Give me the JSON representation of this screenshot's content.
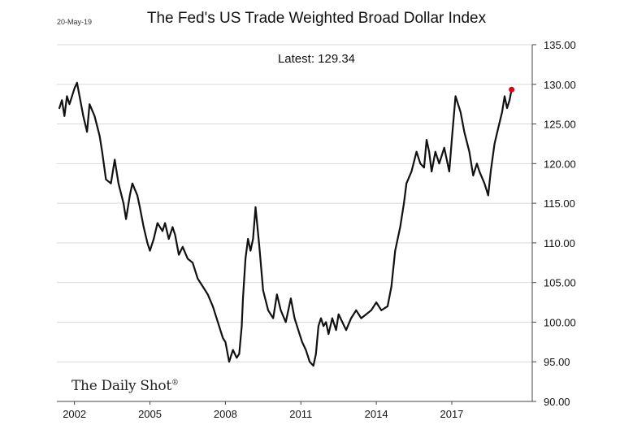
{
  "date_stamp": "20-May-19",
  "brand": "The Daily Shot",
  "brand_mark": "®",
  "colors": {
    "line": "#111111",
    "latest_point": "#e0001b",
    "grid": "#d9d9d9"
  },
  "chart_data": {
    "type": "line",
    "title": "The Fed's US Trade Weighted Broad Dollar Index",
    "annotation": "Latest:  129.34",
    "xlabel": "",
    "ylabel": "",
    "ylim": [
      90,
      135
    ],
    "xlim": [
      2001.3,
      2020.2
    ],
    "x_ticks": [
      2002,
      2005,
      2008,
      2011,
      2014,
      2017
    ],
    "x_tick_labels": [
      "2002",
      "2005",
      "2008",
      "2011",
      "2014",
      "2017"
    ],
    "y_ticks": [
      90,
      95,
      100,
      105,
      110,
      115,
      120,
      125,
      130,
      135
    ],
    "y_tick_labels": [
      "90.00",
      "95.00",
      "100.00",
      "105.00",
      "110.00",
      "115.00",
      "120.00",
      "125.00",
      "130.00",
      "135.00"
    ],
    "grid": "horizontal",
    "latest": {
      "x": 2019.38,
      "y": 129.34
    },
    "series": [
      {
        "x": [
          2001.4,
          2001.5,
          2001.6,
          2001.7,
          2001.8,
          2002.0,
          2002.1,
          2002.2,
          2002.35,
          2002.5,
          2002.6,
          2002.8,
          2003.0,
          2003.1,
          2003.25,
          2003.45,
          2003.6,
          2003.75,
          2003.95,
          2004.05,
          2004.2,
          2004.3,
          2004.5,
          2004.6,
          2004.75,
          2004.9,
          2005.0,
          2005.15,
          2005.3,
          2005.5,
          2005.6,
          2005.75,
          2005.9,
          2006.0,
          2006.15,
          2006.3,
          2006.5,
          2006.7,
          2006.9,
          2007.1,
          2007.3,
          2007.5,
          2007.7,
          2007.9,
          2008.0,
          2008.15,
          2008.3,
          2008.45,
          2008.55,
          2008.65,
          2008.7,
          2008.8,
          2008.9,
          2009.0,
          2009.1,
          2009.2,
          2009.35,
          2009.5,
          2009.7,
          2009.9,
          2010.05,
          2010.2,
          2010.4,
          2010.6,
          2010.75,
          2010.9,
          2011.05,
          2011.2,
          2011.35,
          2011.5,
          2011.6,
          2011.7,
          2011.8,
          2011.9,
          2012.0,
          2012.1,
          2012.25,
          2012.4,
          2012.5,
          2012.65,
          2012.8,
          2013.0,
          2013.2,
          2013.4,
          2013.6,
          2013.8,
          2014.0,
          2014.2,
          2014.45,
          2014.6,
          2014.75,
          2014.95,
          2015.1,
          2015.2,
          2015.4,
          2015.6,
          2015.75,
          2015.9,
          2016.0,
          2016.1,
          2016.2,
          2016.35,
          2016.5,
          2016.7,
          2016.9,
          2017.0,
          2017.15,
          2017.35,
          2017.5,
          2017.7,
          2017.85,
          2018.0,
          2018.1,
          2018.3,
          2018.45,
          2018.55,
          2018.7,
          2018.85,
          2019.0,
          2019.1,
          2019.2,
          2019.3,
          2019.38
        ],
        "y": [
          127.0,
          128.0,
          126.0,
          128.5,
          127.5,
          129.5,
          130.2,
          128.5,
          126.0,
          124.0,
          127.5,
          126.0,
          123.5,
          121.5,
          118.0,
          117.5,
          120.5,
          117.5,
          115.0,
          113.0,
          116.0,
          117.5,
          116.0,
          114.5,
          112.0,
          110.0,
          109.0,
          110.5,
          112.5,
          111.5,
          112.5,
          110.5,
          112.0,
          111.0,
          108.5,
          109.5,
          108.0,
          107.5,
          105.5,
          104.5,
          103.5,
          102.0,
          100.0,
          98.0,
          97.5,
          95.0,
          96.5,
          95.5,
          96.0,
          99.5,
          103.0,
          108.0,
          110.5,
          109.0,
          110.5,
          114.5,
          109.5,
          104.0,
          101.5,
          100.5,
          103.5,
          101.5,
          100.0,
          103.0,
          100.5,
          99.0,
          97.5,
          96.5,
          95.0,
          94.5,
          96.0,
          99.5,
          100.5,
          99.5,
          100.0,
          98.5,
          100.5,
          99.0,
          101.0,
          100.0,
          99.0,
          100.5,
          101.5,
          100.5,
          101.0,
          101.5,
          102.5,
          101.5,
          102.0,
          104.5,
          109.0,
          112.0,
          115.0,
          117.5,
          119.0,
          121.5,
          120.0,
          119.5,
          123.0,
          121.5,
          119.0,
          121.5,
          120.0,
          122.0,
          119.0,
          123.0,
          128.5,
          126.5,
          124.0,
          121.5,
          118.5,
          120.0,
          119.0,
          117.5,
          116.0,
          119.0,
          122.5,
          124.5,
          126.5,
          128.5,
          127.0,
          128.0,
          129.34
        ]
      }
    ]
  }
}
